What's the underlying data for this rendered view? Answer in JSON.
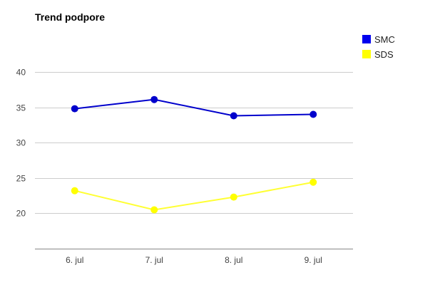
{
  "chart_data": {
    "type": "line",
    "title": "Trend podpore",
    "categories": [
      "6. jul",
      "7. jul",
      "8. jul",
      "9. jul"
    ],
    "y_ticks": [
      20,
      25,
      30,
      35,
      40
    ],
    "ylim": [
      15,
      40
    ],
    "grid": true,
    "legend_position": "right",
    "series": [
      {
        "name": "SMC",
        "color": "#0000cc",
        "marker_color": "#0000cc",
        "legend_color": "#0000ee",
        "values": [
          34.8,
          36.1,
          33.8,
          34.0
        ]
      },
      {
        "name": "SDS",
        "color": "#ffff33",
        "marker_color": "#ffff00",
        "legend_color": "#ffff00",
        "values": [
          23.2,
          20.5,
          22.3,
          24.4
        ]
      }
    ]
  }
}
